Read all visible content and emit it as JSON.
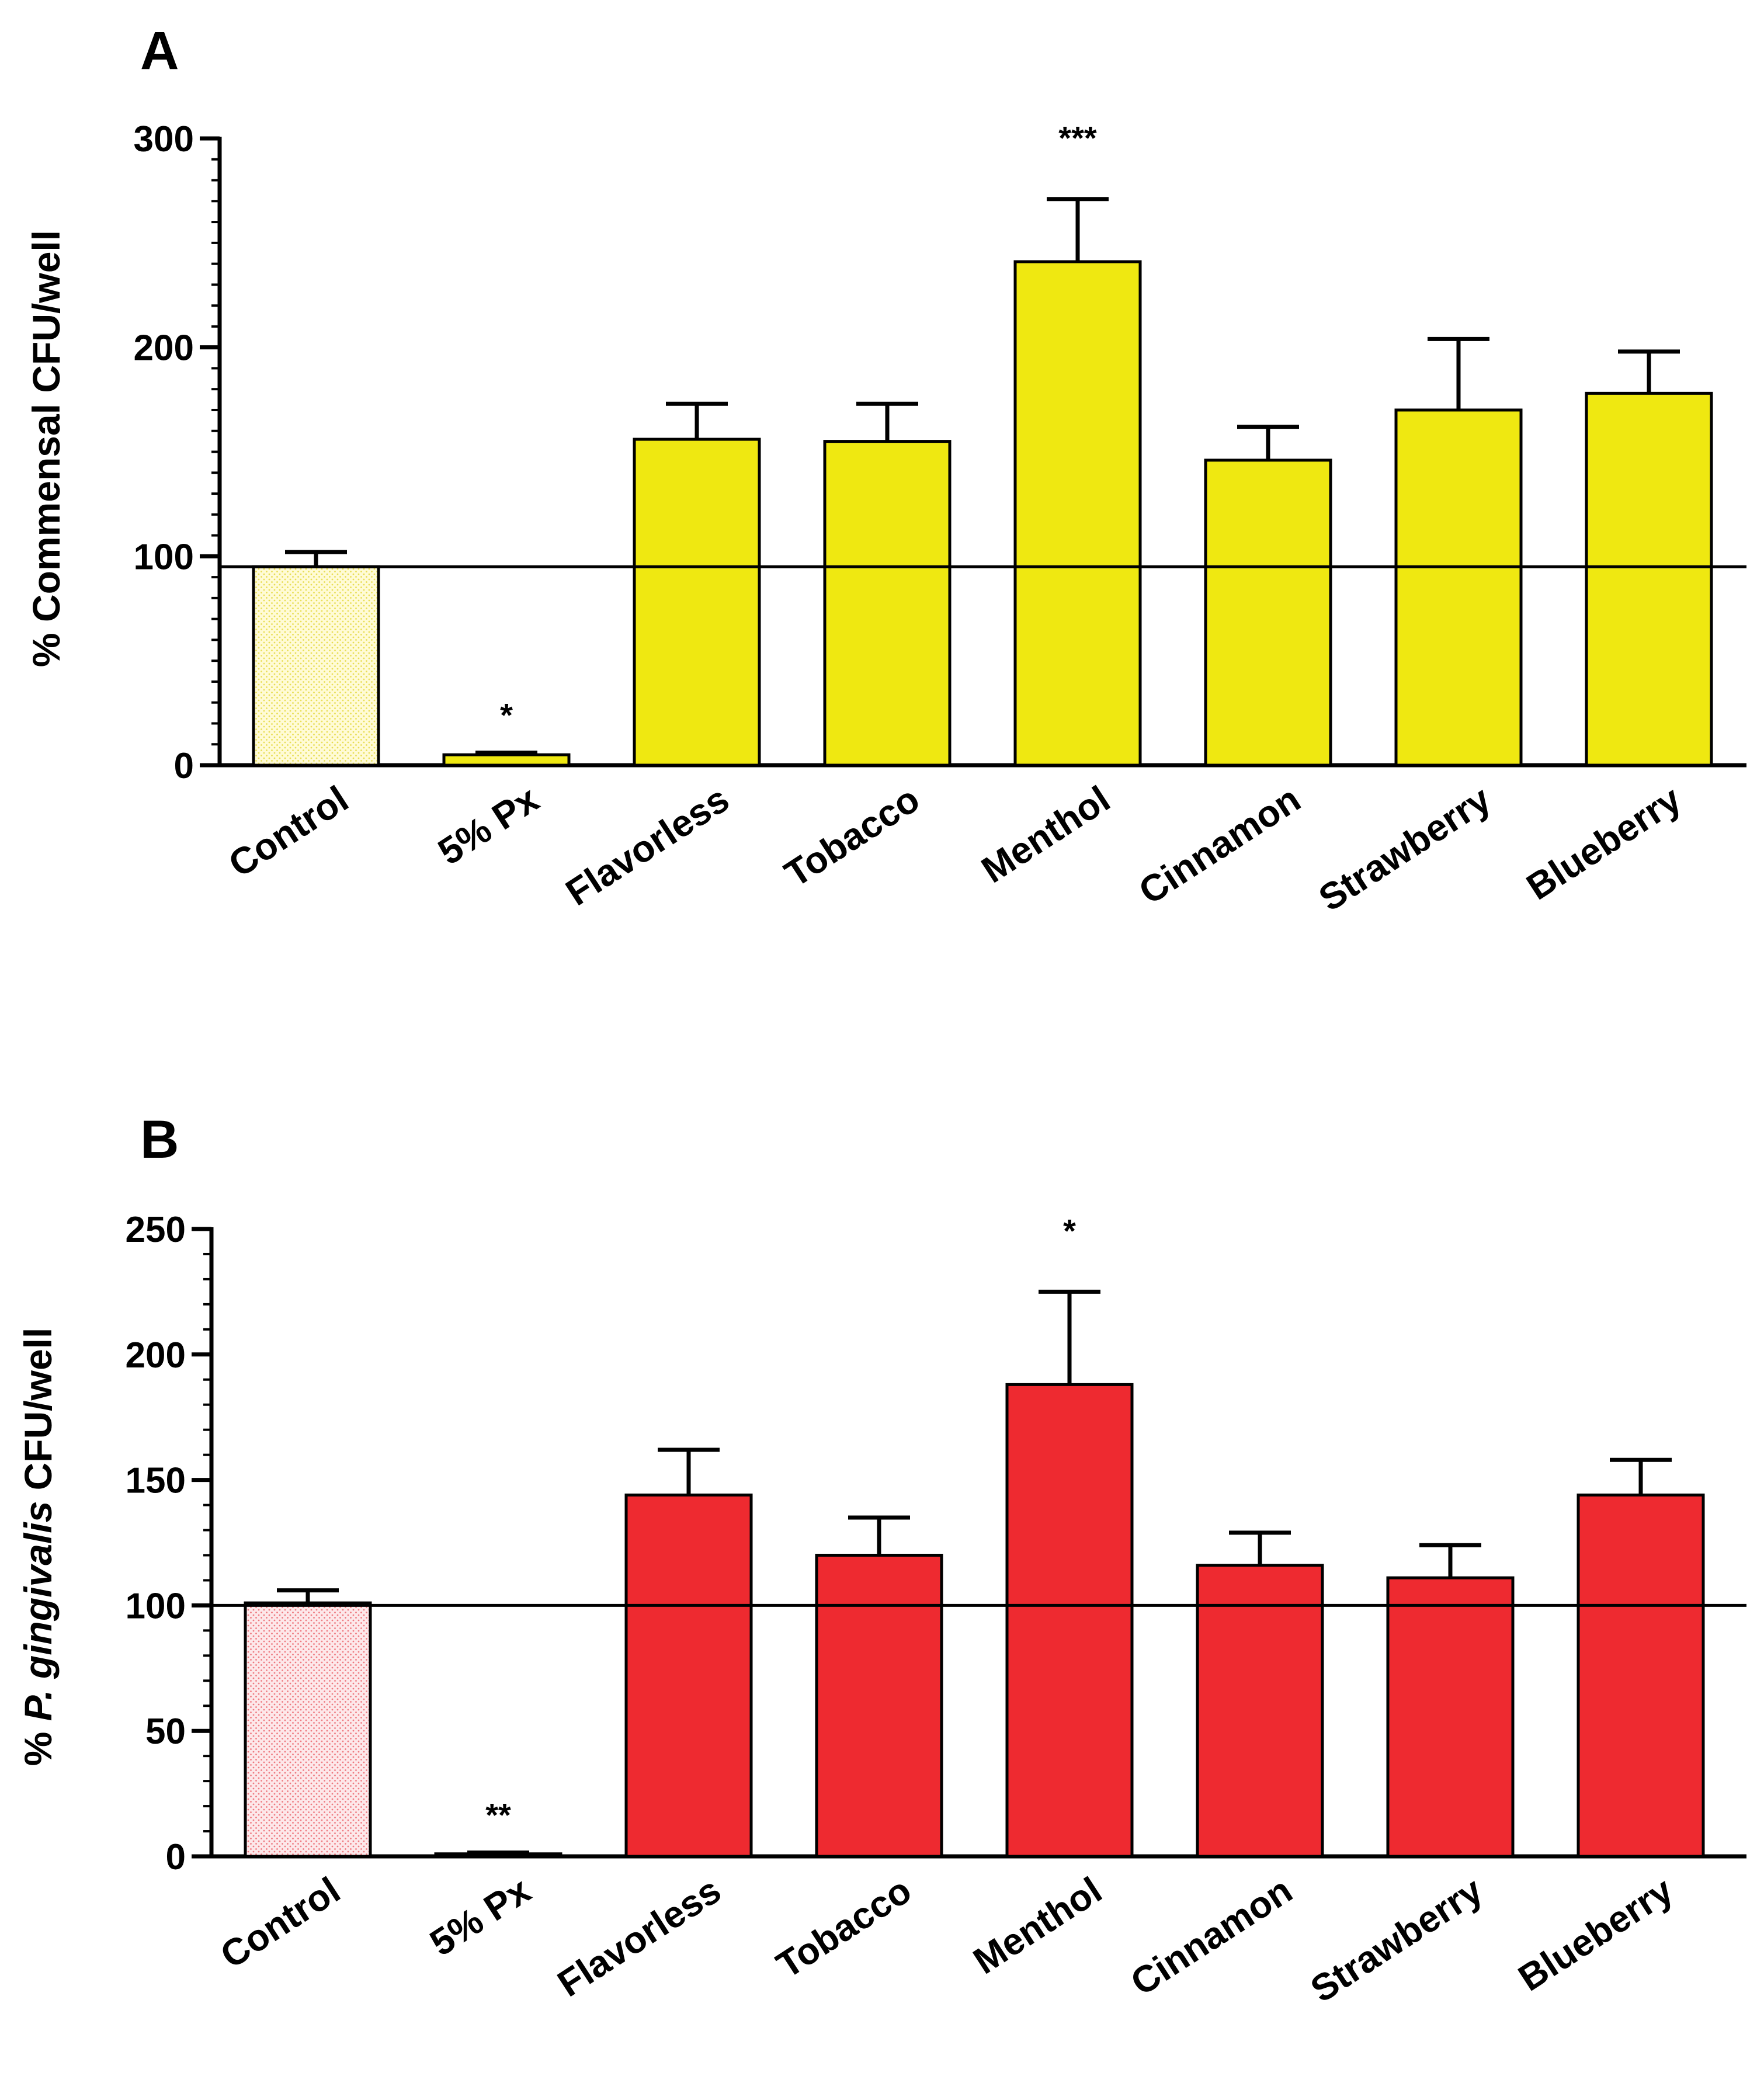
{
  "figure": {
    "panels": [
      "A",
      "B"
    ]
  },
  "chart_data": [
    {
      "panel": "A",
      "type": "bar",
      "title": "",
      "ylabel": "% Commensal CFU/well",
      "xlabel": "",
      "ylim": [
        0,
        300
      ],
      "yticks": [
        0,
        100,
        200,
        300
      ],
      "reference_line": 95,
      "categories": [
        "Control",
        "5% Px",
        "Flavorless",
        "Tobacco",
        "Menthol",
        "Cinnamon",
        "Strawberry",
        "Blueberry"
      ],
      "values": [
        95,
        5,
        156,
        155,
        241,
        146,
        170,
        178
      ],
      "errors": [
        7,
        1,
        17,
        18,
        30,
        16,
        34,
        20
      ],
      "significance": [
        "",
        "*",
        "",
        "",
        "***",
        "",
        "",
        ""
      ],
      "bar_fill": [
        "#FFF9C8",
        "#EFE811",
        "#EFE811",
        "#EFE811",
        "#EFE811",
        "#EFE811",
        "#EFE811",
        "#EFE811"
      ],
      "control_pattern": "dotted",
      "accent": "#EFE811",
      "grid": false
    },
    {
      "panel": "B",
      "type": "bar",
      "title": "",
      "ylabel": "% P. gingivalis CFU/well",
      "ylabel_italic_part": "P. gingivalis",
      "xlabel": "",
      "ylim": [
        0,
        250
      ],
      "yticks": [
        0,
        50,
        100,
        150,
        200,
        250
      ],
      "reference_line": 100,
      "categories": [
        "Control",
        "5% Px",
        "Flavorless",
        "Tobacco",
        "Menthol",
        "Cinnamon",
        "Strawberry",
        "Blueberry"
      ],
      "values": [
        101,
        1,
        144,
        120,
        188,
        116,
        111,
        144
      ],
      "errors": [
        5,
        0.5,
        18,
        15,
        37,
        13,
        13,
        14
      ],
      "significance": [
        "",
        "**",
        "",
        "",
        "*",
        "",
        "",
        ""
      ],
      "bar_fill": [
        "#FCE3E6",
        "#EE2A30",
        "#EE2A30",
        "#EE2A30",
        "#EE2A30",
        "#EE2A30",
        "#EE2A30",
        "#EE2A30"
      ],
      "control_pattern": "dotted",
      "accent": "#EE2A30",
      "grid": false
    }
  ]
}
